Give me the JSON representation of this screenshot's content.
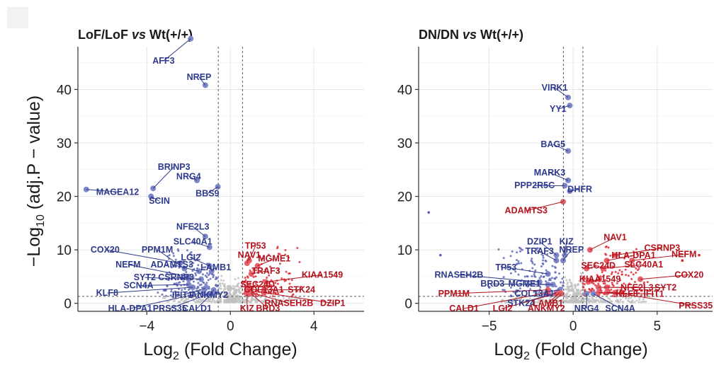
{
  "chart_data": [
    {
      "type": "scatter",
      "title_parts": [
        "LoF/LoF ",
        "vs",
        " Wt(+/+)"
      ],
      "xlabel_parts": [
        "Log",
        "2",
        " (Fold Change)"
      ],
      "ylabel_parts": [
        "−Log",
        "10",
        " (adj.P − value)"
      ],
      "xlim": [
        -7.3,
        6.4
      ],
      "ylim": [
        -1.5,
        48
      ],
      "xticks": [
        -4,
        0,
        4
      ],
      "yticks": [
        0,
        10,
        20,
        30,
        40
      ],
      "fc_cutoffs": [
        -0.58,
        0.58
      ],
      "p_cutoff": 1.3,
      "colors": {
        "down": "#2e3a8c",
        "up": "#b3121d",
        "ns": "#bfbfbf",
        "down_pt": "#5560b5",
        "up_pt": "#e0212e"
      },
      "points": [
        {
          "gene": "AFF3",
          "x": -1.9,
          "y": 49.5,
          "dir": "down",
          "lx": -3.2,
          "ly": 44.8,
          "anchor": "middle"
        },
        {
          "gene": "NREP",
          "x": -1.2,
          "y": 40.8,
          "dir": "down",
          "lx": -1.5,
          "ly": 41.8,
          "anchor": "middle"
        },
        {
          "gene": "MAGEA12",
          "x": -6.9,
          "y": 21.3,
          "dir": "down",
          "lx": -5.4,
          "ly": 20.3,
          "anchor": "middle"
        },
        {
          "gene": "BRINP3",
          "x": -3.7,
          "y": 21.5,
          "dir": "down",
          "lx": -2.7,
          "ly": 25.0,
          "anchor": "middle"
        },
        {
          "gene": "NRG4",
          "x": -1.6,
          "y": 23.0,
          "dir": "down",
          "lx": -2.0,
          "ly": 23.2,
          "anchor": "middle"
        },
        {
          "gene": "SCIN",
          "x": -3.8,
          "y": 20.0,
          "dir": "down",
          "lx": -3.4,
          "ly": 18.6,
          "anchor": "middle"
        },
        {
          "gene": "BBS9",
          "x": -0.6,
          "y": 21.8,
          "dir": "down",
          "lx": -1.1,
          "ly": 20.0,
          "anchor": "middle"
        },
        {
          "gene": "NFE2L3",
          "x": -1.2,
          "y": 12.5,
          "dir": "down",
          "lx": -1.8,
          "ly": 13.8,
          "anchor": "middle"
        },
        {
          "gene": "SLC40A1",
          "x": -1.0,
          "y": 10.5,
          "dir": "down",
          "lx": -1.8,
          "ly": 11.0,
          "anchor": "middle"
        },
        {
          "gene": "COX20",
          "x": -2.4,
          "y": 7.5,
          "dir": "down",
          "lx": -6.0,
          "ly": 9.5,
          "anchor": "middle"
        },
        {
          "gene": "PPM1M",
          "x": -2.2,
          "y": 6.5,
          "dir": "down",
          "lx": -3.5,
          "ly": 9.5,
          "anchor": "middle"
        },
        {
          "gene": "LGI2",
          "x": -1.0,
          "y": 7.0,
          "dir": "down",
          "lx": -1.9,
          "ly": 8.0,
          "anchor": "middle"
        },
        {
          "gene": "NEFM",
          "x": -2.0,
          "y": 5.0,
          "dir": "down",
          "lx": -4.9,
          "ly": 6.7,
          "anchor": "middle"
        },
        {
          "gene": "ADAMTS3",
          "x": -1.5,
          "y": 6.0,
          "dir": "down",
          "lx": -2.8,
          "ly": 6.7,
          "anchor": "middle"
        },
        {
          "gene": "LAMB1",
          "x": -0.9,
          "y": 6.0,
          "dir": "down",
          "lx": -0.7,
          "ly": 6.2,
          "anchor": "middle"
        },
        {
          "gene": "SYT2",
          "x": -2.0,
          "y": 4.5,
          "dir": "down",
          "lx": -4.1,
          "ly": 4.3,
          "anchor": "middle"
        },
        {
          "gene": "CSRNP3",
          "x": -1.4,
          "y": 4.5,
          "dir": "down",
          "lx": -2.6,
          "ly": 4.3,
          "anchor": "middle"
        },
        {
          "gene": "SCN4A",
          "x": -2.0,
          "y": 3.5,
          "dir": "down",
          "lx": -4.4,
          "ly": 2.8,
          "anchor": "middle"
        },
        {
          "gene": "KLF8",
          "x": -1.8,
          "y": 3.0,
          "dir": "down",
          "lx": -5.9,
          "ly": 1.4,
          "anchor": "middle"
        },
        {
          "gene": "IFIT1",
          "x": -1.2,
          "y": 2.8,
          "dir": "down",
          "lx": -2.3,
          "ly": 1.0,
          "anchor": "middle"
        },
        {
          "gene": "ANKMY2",
          "x": -0.8,
          "y": 2.5,
          "dir": "down",
          "lx": -1.0,
          "ly": 1.0,
          "anchor": "middle"
        },
        {
          "gene": "HLA-DPA1",
          "x": -1.3,
          "y": 2.0,
          "dir": "down",
          "lx": -4.8,
          "ly": -1.5,
          "anchor": "middle"
        },
        {
          "gene": "PRSS35",
          "x": -1.0,
          "y": 1.8,
          "dir": "down",
          "lx": -2.9,
          "ly": -1.5,
          "anchor": "middle"
        },
        {
          "gene": "CALD1",
          "x": -0.9,
          "y": 1.8,
          "dir": "down",
          "lx": -1.6,
          "ly": -1.5,
          "anchor": "middle"
        },
        {
          "gene": "TP53",
          "x": 0.9,
          "y": 8.0,
          "dir": "up",
          "lx": 1.2,
          "ly": 10.2,
          "anchor": "middle"
        },
        {
          "gene": "NAV1",
          "x": 0.8,
          "y": 7.5,
          "dir": "up",
          "lx": 0.9,
          "ly": 8.5,
          "anchor": "middle"
        },
        {
          "gene": "MGME1",
          "x": 1.3,
          "y": 7.0,
          "dir": "up",
          "lx": 2.1,
          "ly": 7.8,
          "anchor": "middle"
        },
        {
          "gene": "TRAF3",
          "x": 1.0,
          "y": 5.5,
          "dir": "up",
          "lx": 1.7,
          "ly": 5.5,
          "anchor": "middle"
        },
        {
          "gene": "KIAA1549",
          "x": 1.7,
          "y": 4.0,
          "dir": "up",
          "lx": 4.4,
          "ly": 4.8,
          "anchor": "middle"
        },
        {
          "gene": "SEC24D",
          "x": 0.9,
          "y": 3.0,
          "dir": "up",
          "lx": 1.3,
          "ly": 3.0,
          "anchor": "middle"
        },
        {
          "gene": "COL13A1",
          "x": 0.8,
          "y": 2.5,
          "dir": "up",
          "lx": 1.6,
          "ly": 2.0,
          "anchor": "middle"
        },
        {
          "gene": "STK24",
          "x": 1.6,
          "y": 2.5,
          "dir": "up",
          "lx": 3.4,
          "ly": 2.0,
          "anchor": "middle"
        },
        {
          "gene": "RNASEH2B",
          "x": 1.0,
          "y": 2.0,
          "dir": "up",
          "lx": 2.8,
          "ly": -0.5,
          "anchor": "middle"
        },
        {
          "gene": "DZIP1",
          "x": 1.6,
          "y": 2.0,
          "dir": "up",
          "lx": 4.9,
          "ly": -0.5,
          "anchor": "middle"
        },
        {
          "gene": "KIZ",
          "x": 0.8,
          "y": 1.8,
          "dir": "up",
          "lx": 0.8,
          "ly": -1.5,
          "anchor": "middle"
        },
        {
          "gene": "BRD3",
          "x": 1.0,
          "y": 1.8,
          "dir": "up",
          "lx": 1.8,
          "ly": -1.5,
          "anchor": "middle"
        }
      ]
    },
    {
      "type": "scatter",
      "title_parts": [
        "DN/DN ",
        "vs",
        " Wt(+/+)"
      ],
      "xlabel_parts": [
        "Log",
        "2",
        " (Fold Change)"
      ],
      "ylabel_parts": [],
      "xlim": [
        -9.2,
        8.3
      ],
      "ylim": [
        -1.5,
        48
      ],
      "xticks": [
        -5,
        0,
        5
      ],
      "yticks": [
        0,
        10,
        20,
        30,
        40
      ],
      "fc_cutoffs": [
        -0.58,
        0.58
      ],
      "p_cutoff": 1.3,
      "colors": {
        "down": "#2e3a8c",
        "up": "#b3121d",
        "ns": "#bfbfbf",
        "down_pt": "#5560b5",
        "up_pt": "#e0212e"
      },
      "points": [
        {
          "gene": "VIRK1",
          "x": -0.3,
          "y": 38.5,
          "dir": "down",
          "lx": -1.1,
          "ly": 39.8,
          "anchor": "middle"
        },
        {
          "gene": "YY1",
          "x": -0.2,
          "y": 37.0,
          "dir": "down",
          "lx": -0.9,
          "ly": 35.8,
          "anchor": "middle"
        },
        {
          "gene": "BAG5",
          "x": -0.3,
          "y": 28.5,
          "dir": "down",
          "lx": -1.2,
          "ly": 29.2,
          "anchor": "middle"
        },
        {
          "gene": "MARK3",
          "x": -0.3,
          "y": 23.0,
          "dir": "down",
          "lx": -1.4,
          "ly": 23.9,
          "anchor": "middle"
        },
        {
          "gene": "PPP2R5C",
          "x": -0.5,
          "y": 22.0,
          "dir": "down",
          "lx": -2.3,
          "ly": 21.5,
          "anchor": "middle"
        },
        {
          "gene": "DHFR",
          "x": -0.2,
          "y": 21.0,
          "dir": "down",
          "lx": 0.4,
          "ly": 20.8,
          "anchor": "middle"
        },
        {
          "gene": "ADAMTS3",
          "x": -0.6,
          "y": 19.0,
          "dir": "up",
          "lx": -2.8,
          "ly": 16.8,
          "anchor": "middle"
        },
        {
          "gene": "NAV1",
          "x": 1.0,
          "y": 10.0,
          "dir": "up",
          "lx": 2.5,
          "ly": 11.8,
          "anchor": "middle"
        },
        {
          "gene": "DZIP1",
          "x": -1.0,
          "y": 9.0,
          "dir": "down",
          "lx": -2.0,
          "ly": 11.0,
          "anchor": "middle"
        },
        {
          "gene": "KIZ",
          "x": -0.5,
          "y": 9.0,
          "dir": "down",
          "lx": -0.4,
          "ly": 11.0,
          "anchor": "middle"
        },
        {
          "gene": "TRAF3",
          "x": -1.0,
          "y": 8.0,
          "dir": "down",
          "lx": -2.0,
          "ly": 9.2,
          "anchor": "middle"
        },
        {
          "gene": "NREP",
          "x": -0.6,
          "y": 8.0,
          "dir": "down",
          "lx": -0.1,
          "ly": 9.5,
          "anchor": "middle"
        },
        {
          "gene": "CSRNP3",
          "x": 2.5,
          "y": 9.0,
          "dir": "up",
          "lx": 5.3,
          "ly": 9.8,
          "anchor": "middle"
        },
        {
          "gene": "HLA-DPA1",
          "x": 2.0,
          "y": 8.0,
          "dir": "up",
          "lx": 3.6,
          "ly": 8.4,
          "anchor": "middle"
        },
        {
          "gene": "NEFM",
          "x": 3.5,
          "y": 8.0,
          "dir": "up",
          "lx": 6.6,
          "ly": 8.6,
          "anchor": "middle"
        },
        {
          "gene": "SEC24D",
          "x": 0.8,
          "y": 6.5,
          "dir": "up",
          "lx": 1.5,
          "ly": 6.5,
          "anchor": "middle"
        },
        {
          "gene": "SLC40A1",
          "x": 1.8,
          "y": 6.5,
          "dir": "up",
          "lx": 4.2,
          "ly": 6.7,
          "anchor": "middle"
        },
        {
          "gene": "TP53",
          "x": -1.5,
          "y": 5.5,
          "dir": "down",
          "lx": -4.0,
          "ly": 6.2,
          "anchor": "middle"
        },
        {
          "gene": "RNASEH2B",
          "x": -2.0,
          "y": 4.0,
          "dir": "down",
          "lx": -6.8,
          "ly": 4.8,
          "anchor": "middle"
        },
        {
          "gene": "COX20",
          "x": 4.0,
          "y": 4.5,
          "dir": "up",
          "lx": 6.9,
          "ly": 4.8,
          "anchor": "middle"
        },
        {
          "gene": "KIAA1549",
          "x": 0.9,
          "y": 4.0,
          "dir": "up",
          "lx": 1.6,
          "ly": 4.0,
          "anchor": "middle"
        },
        {
          "gene": "BRD3",
          "x": -1.5,
          "y": 3.5,
          "dir": "down",
          "lx": -4.8,
          "ly": 3.1,
          "anchor": "middle"
        },
        {
          "gene": "MGME1",
          "x": -1.2,
          "y": 3.5,
          "dir": "down",
          "lx": -2.9,
          "ly": 3.1,
          "anchor": "middle"
        },
        {
          "gene": "NFE2L3",
          "x": 1.5,
          "y": 3.0,
          "dir": "up",
          "lx": 3.8,
          "ly": 2.4,
          "anchor": "middle"
        },
        {
          "gene": "SYT2",
          "x": 2.0,
          "y": 3.0,
          "dir": "up",
          "lx": 5.5,
          "ly": 2.4,
          "anchor": "middle"
        },
        {
          "gene": "PPM1M",
          "x": -1.5,
          "y": 2.5,
          "dir": "up",
          "lx": -7.1,
          "ly": 1.3,
          "anchor": "middle"
        },
        {
          "gene": "COL13A1",
          "x": -0.8,
          "y": 2.5,
          "dir": "down",
          "lx": -2.3,
          "ly": 1.3,
          "anchor": "middle"
        },
        {
          "gene": "KLF8",
          "x": 1.5,
          "y": 2.0,
          "dir": "up",
          "lx": 3.2,
          "ly": 1.2,
          "anchor": "middle"
        },
        {
          "gene": "IFIT1",
          "x": 2.0,
          "y": 2.0,
          "dir": "up",
          "lx": 4.8,
          "ly": 1.2,
          "anchor": "middle"
        },
        {
          "gene": "STK24",
          "x": -1.0,
          "y": 2.0,
          "dir": "down",
          "lx": -3.1,
          "ly": -0.5,
          "anchor": "middle"
        },
        {
          "gene": "LAMB1",
          "x": -0.8,
          "y": 2.0,
          "dir": "up",
          "lx": -1.5,
          "ly": -0.5,
          "anchor": "middle"
        },
        {
          "gene": "CALD1",
          "x": -1.5,
          "y": 2.0,
          "dir": "up",
          "lx": -6.5,
          "ly": -1.5,
          "anchor": "middle"
        },
        {
          "gene": "LGI2",
          "x": -1.0,
          "y": 1.8,
          "dir": "up",
          "lx": -4.2,
          "ly": -1.5,
          "anchor": "middle"
        },
        {
          "gene": "ANKMY2",
          "x": -0.7,
          "y": 1.8,
          "dir": "up",
          "lx": -1.6,
          "ly": -1.5,
          "anchor": "middle"
        },
        {
          "gene": "NRG4",
          "x": 0.8,
          "y": 1.8,
          "dir": "down",
          "lx": 0.8,
          "ly": -1.5,
          "anchor": "middle"
        },
        {
          "gene": "SCN4A",
          "x": 1.2,
          "y": 1.8,
          "dir": "down",
          "lx": 2.8,
          "ly": -1.5,
          "anchor": "middle"
        },
        {
          "gene": "PRSS35",
          "x": 2.5,
          "y": 2.0,
          "dir": "up",
          "lx": 7.3,
          "ly": -1.0,
          "anchor": "middle"
        }
      ],
      "extra_points": [
        {
          "x": -8.6,
          "y": 17.0,
          "dir": "down"
        },
        {
          "x": -7.9,
          "y": 9.0,
          "dir": "down"
        },
        {
          "x": -5.0,
          "y": 3.0,
          "dir": "down"
        },
        {
          "x": 6.5,
          "y": 8.0,
          "dir": "up"
        },
        {
          "x": 7.5,
          "y": 9.0,
          "dir": "up"
        }
      ]
    }
  ]
}
